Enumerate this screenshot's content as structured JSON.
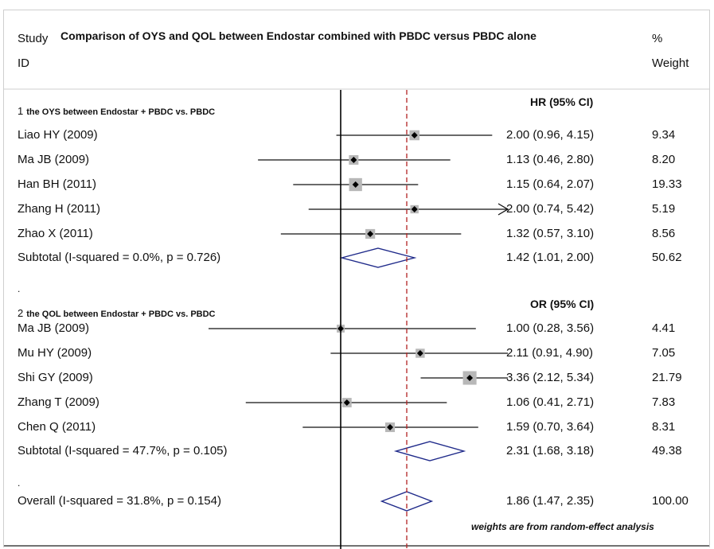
{
  "header": {
    "study": "Study",
    "id": "ID",
    "title": "Comparison of OYS and QOL between Endostar combined with PBDC versus PBDC alone",
    "pct": "%",
    "weight": "Weight"
  },
  "footnote": "weights are from random-effect analysis",
  "colors": {
    "ci_line": "#111111",
    "box": "#b8b8b8",
    "diamond": "#1f2a8a",
    "null_line": "#000000",
    "overall_line": "#b22222"
  },
  "chart_data": {
    "type": "forest",
    "title": "Comparison of OYS and QOL between Endostar combined with PBDC versus PBDC alone",
    "null_value": 1,
    "overall_effect": 1.86,
    "groups": [
      {
        "num": "1",
        "label": "the OYS between Endostar + PBDC vs. PBDC",
        "measure": "HR (95% CI)",
        "studies": [
          {
            "id": "Liao HY (2009)",
            "est": 2.0,
            "lo": 0.96,
            "hi": 4.15,
            "ci_text": "2.00 (0.96, 4.15)",
            "weight": "9.34"
          },
          {
            "id": "Ma JB (2009)",
            "est": 1.13,
            "lo": 0.46,
            "hi": 2.8,
            "ci_text": "1.13 (0.46, 2.80)",
            "weight": "8.20"
          },
          {
            "id": "Han BH (2011)",
            "est": 1.15,
            "lo": 0.64,
            "hi": 2.07,
            "ci_text": "1.15 (0.64, 2.07)",
            "weight": "19.33"
          },
          {
            "id": "Zhang H (2011)",
            "est": 2.0,
            "lo": 0.74,
            "hi": 5.42,
            "ci_text": "2.00 (0.74, 5.42)",
            "weight": "5.19",
            "arrow": true
          },
          {
            "id": "Zhao X (2011)",
            "est": 1.32,
            "lo": 0.57,
            "hi": 3.1,
            "ci_text": "1.32 (0.57, 3.10)",
            "weight": "8.56"
          }
        ],
        "subtotal": {
          "label": "Subtotal  (I-squared = 0.0%, p = 0.726)",
          "est": 1.42,
          "lo": 1.01,
          "hi": 2.0,
          "ci_text": "1.42 (1.01, 2.00)",
          "weight": "50.62"
        }
      },
      {
        "num": "2",
        "label": "the QOL between Endostar + PBDC vs. PBDC",
        "measure": "OR (95% CI)",
        "studies": [
          {
            "id": "Ma JB (2009)",
            "est": 1.0,
            "lo": 0.28,
            "hi": 3.56,
            "ci_text": "1.00 (0.28, 3.56)",
            "weight": "4.41"
          },
          {
            "id": "Mu HY (2009)",
            "est": 2.11,
            "lo": 0.91,
            "hi": 4.9,
            "ci_text": "2.11 (0.91, 4.90)",
            "weight": "7.05"
          },
          {
            "id": "Shi GY (2009)",
            "est": 3.36,
            "lo": 2.12,
            "hi": 5.34,
            "ci_text": "3.36 (2.12, 5.34)",
            "weight": "21.79"
          },
          {
            "id": "Zhang T (2009)",
            "est": 1.06,
            "lo": 0.41,
            "hi": 2.71,
            "ci_text": "1.06 (0.41, 2.71)",
            "weight": "7.83"
          },
          {
            "id": "Chen Q (2011)",
            "est": 1.59,
            "lo": 0.7,
            "hi": 3.64,
            "ci_text": "1.59 (0.70, 3.64)",
            "weight": "8.31"
          }
        ],
        "subtotal": {
          "label": "Subtotal  (I-squared = 47.7%, p = 0.105)",
          "est": 2.31,
          "lo": 1.68,
          "hi": 3.18,
          "ci_text": "2.31 (1.68, 3.18)",
          "weight": "49.38"
        }
      }
    ],
    "overall": {
      "label": "Overall  (I-squared = 31.8%, p = 0.154)",
      "est": 1.86,
      "lo": 1.47,
      "hi": 2.35,
      "ci_text": "1.86 (1.47, 2.35)",
      "weight": "100.00"
    }
  }
}
